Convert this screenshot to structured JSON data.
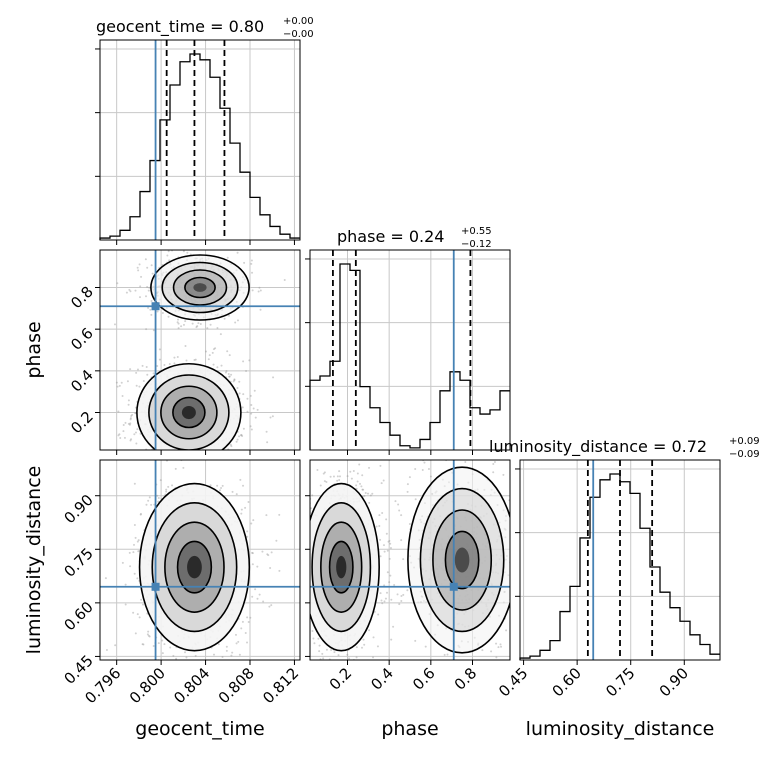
{
  "chart_data": {
    "type": "corner",
    "parameters": [
      "geocent_time",
      "phase",
      "luminosity_distance"
    ],
    "truths": {
      "geocent_time": 0.7995,
      "phase": 0.71,
      "luminosity_distance": 0.645
    },
    "titles": [
      {
        "param": "geocent_time",
        "prefix": "geocent_time = 0.80",
        "plus": "+0.00",
        "minus": "−0.00"
      },
      {
        "param": "phase",
        "prefix": "phase = 0.24",
        "plus": "+0.55",
        "minus": "−0.12"
      },
      {
        "param": "luminosity_distance",
        "prefix": "luminosity_distance = 0.72",
        "plus": "+0.09",
        "minus": "−0.09"
      }
    ],
    "axes": {
      "geocent_time": {
        "label": "geocent_time",
        "range": [
          0.7945,
          0.8125
        ],
        "ticks": [
          0.796,
          0.8,
          0.804,
          0.808,
          0.812
        ],
        "tick_labels": [
          "0.796",
          "0.800",
          "0.804",
          "0.808",
          "0.812"
        ]
      },
      "phase": {
        "label": "phase",
        "range": [
          0.02,
          0.98
        ],
        "ticks": [
          0.2,
          0.4,
          0.6,
          0.8
        ],
        "tick_labels": [
          "0.2",
          "0.4",
          "0.6",
          "0.8"
        ]
      },
      "luminosity_distance": {
        "label": "luminosity_distance",
        "range": [
          0.44,
          1.0
        ],
        "ticks": [
          0.45,
          0.6,
          0.75,
          0.9
        ],
        "tick_labels": [
          "0.45",
          "0.60",
          "0.75",
          "0.90"
        ]
      }
    },
    "histograms": {
      "geocent_time": {
        "edges_range": [
          0.7945,
          0.8125
        ],
        "bins": 20,
        "counts": [
          0.01,
          0.02,
          0.05,
          0.12,
          0.25,
          0.41,
          0.62,
          0.8,
          0.92,
          0.96,
          0.93,
          0.84,
          0.68,
          0.5,
          0.35,
          0.22,
          0.13,
          0.07,
          0.03,
          0.01
        ],
        "quantiles": [
          0.8005,
          0.803,
          0.8057
        ]
      },
      "phase": {
        "edges_range": [
          0.02,
          0.98
        ],
        "bins": 20,
        "counts": [
          0.33,
          0.35,
          0.42,
          0.88,
          0.85,
          0.3,
          0.2,
          0.13,
          0.07,
          0.02,
          0.01,
          0.05,
          0.13,
          0.28,
          0.37,
          0.33,
          0.2,
          0.17,
          0.19,
          0.28
        ],
        "quantiles": [
          0.13,
          0.24,
          0.79
        ]
      },
      "luminosity_distance": {
        "edges_range": [
          0.44,
          1.0
        ],
        "bins": 20,
        "counts": [
          0.01,
          0.02,
          0.05,
          0.1,
          0.25,
          0.38,
          0.63,
          0.84,
          0.93,
          0.96,
          0.92,
          0.86,
          0.68,
          0.48,
          0.35,
          0.27,
          0.2,
          0.13,
          0.08,
          0.03
        ],
        "quantiles": [
          0.63,
          0.72,
          0.81
        ]
      }
    },
    "joint_modes": {
      "phase_vs_geocent_time": [
        {
          "x": 0.8025,
          "y": 0.2,
          "weight": 1.0
        },
        {
          "x": 0.8035,
          "y": 0.8,
          "weight": 0.55
        }
      ],
      "luminosity_distance_vs_geocent_time": [
        {
          "x": 0.803,
          "y": 0.7,
          "weight": 1.0
        }
      ],
      "luminosity_distance_vs_phase": [
        {
          "x": 0.17,
          "y": 0.7,
          "weight": 1.0
        },
        {
          "x": 0.75,
          "y": 0.72,
          "weight": 0.5
        }
      ]
    },
    "grid": true,
    "colors": {
      "truth": "#4682b4",
      "contour": "#000000",
      "hist": "#000000",
      "scatter": "#9a9a9a",
      "grid": "#c8c8c8"
    }
  }
}
